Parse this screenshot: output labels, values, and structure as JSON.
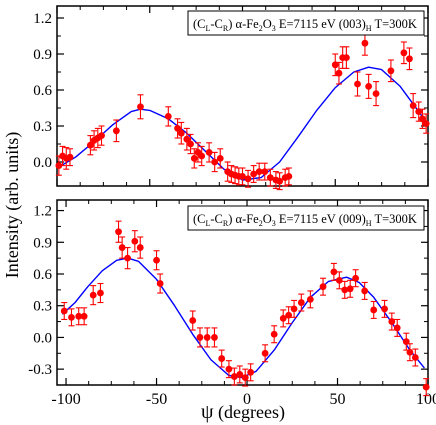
{
  "figure": {
    "xlabel_symbol": "ψ",
    "xlabel_unit": "(degrees)",
    "ylabel": "Intensity (arb. units)"
  },
  "chart_data": [
    {
      "type": "scatter",
      "legend": {
        "prefix": "(C",
        "sub_left": "L",
        "dash": "-C",
        "sub_right": "R",
        "mid": ") α-Fe",
        "sub_2": "2",
        "o": "O",
        "sub_3": "3",
        "energy": " E=7115 eV (003)",
        "sub_h": "H",
        "temp": " T=300K",
        "position": "top-right"
      },
      "xlim": [
        -100,
        100
      ],
      "ylim": [
        -0.2,
        1.3
      ],
      "xticks": [
        -100,
        -50,
        0,
        50,
        100
      ],
      "yticks": [
        "0.0",
        "0.3",
        "0.6",
        "0.9",
        "1.2"
      ],
      "fit_color": "#0000ff",
      "point_color": "#ff0000",
      "fit": {
        "x": [
          -100,
          -90,
          -80,
          -70,
          -60,
          -55,
          -50,
          -40,
          -30,
          -20,
          -10,
          0,
          10,
          20,
          30,
          40,
          50,
          60,
          68,
          75,
          85,
          95,
          100
        ],
        "y": [
          -0.05,
          0.04,
          0.17,
          0.31,
          0.42,
          0.44,
          0.43,
          0.36,
          0.24,
          0.09,
          -0.06,
          -0.15,
          -0.13,
          0.0,
          0.21,
          0.43,
          0.62,
          0.75,
          0.79,
          0.77,
          0.63,
          0.42,
          0.31
        ]
      },
      "points": [
        {
          "x": -99,
          "y": -0.03,
          "e": 0.08
        },
        {
          "x": -97,
          "y": 0.05,
          "e": 0.08
        },
        {
          "x": -95,
          "y": 0.03,
          "e": 0.09
        },
        {
          "x": -93,
          "y": 0.04,
          "e": 0.07
        },
        {
          "x": -82,
          "y": 0.14,
          "e": 0.08
        },
        {
          "x": -80,
          "y": 0.18,
          "e": 0.08
        },
        {
          "x": -78,
          "y": 0.2,
          "e": 0.08
        },
        {
          "x": -76,
          "y": 0.22,
          "e": 0.08
        },
        {
          "x": -68,
          "y": 0.26,
          "e": 0.09
        },
        {
          "x": -55,
          "y": 0.46,
          "e": 0.1
        },
        {
          "x": -40,
          "y": 0.38,
          "e": 0.08
        },
        {
          "x": -35,
          "y": 0.28,
          "e": 0.08
        },
        {
          "x": -33,
          "y": 0.24,
          "e": 0.09
        },
        {
          "x": -30,
          "y": 0.19,
          "e": 0.09
        },
        {
          "x": -28,
          "y": 0.15,
          "e": 0.08
        },
        {
          "x": -26,
          "y": 0.03,
          "e": 0.08
        },
        {
          "x": -24,
          "y": 0.08,
          "e": 0.08
        },
        {
          "x": -22,
          "y": 0.05,
          "e": 0.08
        },
        {
          "x": -18,
          "y": 0.08,
          "e": 0.08
        },
        {
          "x": -15,
          "y": 0.0,
          "e": 0.08
        },
        {
          "x": -12,
          "y": 0.03,
          "e": 0.08
        },
        {
          "x": -8,
          "y": -0.08,
          "e": 0.08
        },
        {
          "x": -6,
          "y": -0.1,
          "e": 0.07
        },
        {
          "x": -4,
          "y": -0.11,
          "e": 0.07
        },
        {
          "x": -2,
          "y": -0.12,
          "e": 0.07
        },
        {
          "x": 0,
          "y": -0.12,
          "e": 0.07
        },
        {
          "x": 3,
          "y": -0.14,
          "e": 0.07
        },
        {
          "x": 6,
          "y": -0.1,
          "e": 0.07
        },
        {
          "x": 9,
          "y": -0.08,
          "e": 0.07
        },
        {
          "x": 12,
          "y": -0.08,
          "e": 0.07
        },
        {
          "x": 15,
          "y": -0.13,
          "e": 0.07
        },
        {
          "x": 18,
          "y": -0.15,
          "e": 0.07
        },
        {
          "x": 20,
          "y": -0.16,
          "e": 0.07
        },
        {
          "x": 23,
          "y": -0.13,
          "e": 0.07
        },
        {
          "x": 25,
          "y": -0.12,
          "e": 0.07
        },
        {
          "x": 50,
          "y": 0.81,
          "e": 0.09
        },
        {
          "x": 52,
          "y": 0.74,
          "e": 0.09
        },
        {
          "x": 54,
          "y": 0.87,
          "e": 0.09
        },
        {
          "x": 56,
          "y": 0.87,
          "e": 0.09
        },
        {
          "x": 62,
          "y": 0.65,
          "e": 0.1
        },
        {
          "x": 66,
          "y": 0.99,
          "e": 0.1
        },
        {
          "x": 68,
          "y": 0.63,
          "e": 0.1
        },
        {
          "x": 72,
          "y": 0.57,
          "e": 0.1
        },
        {
          "x": 80,
          "y": 0.76,
          "e": 0.09
        },
        {
          "x": 87,
          "y": 0.91,
          "e": 0.09
        },
        {
          "x": 90,
          "y": 0.86,
          "e": 0.09
        },
        {
          "x": 92,
          "y": 0.47,
          "e": 0.1
        },
        {
          "x": 95,
          "y": 0.42,
          "e": 0.08
        },
        {
          "x": 97,
          "y": 0.36,
          "e": 0.08
        },
        {
          "x": 99,
          "y": 0.32,
          "e": 0.08
        }
      ]
    },
    {
      "type": "scatter",
      "legend": {
        "prefix": "(C",
        "sub_left": "L",
        "dash": "-C",
        "sub_right": "R",
        "mid": ") α-Fe",
        "sub_2": "2",
        "o": "O",
        "sub_3": "3",
        "energy": " E=7115 eV (009)",
        "sub_h": "H",
        "temp": " T=300K",
        "position": "top-right"
      },
      "xlim": [
        -105,
        100
      ],
      "ylim": [
        -0.45,
        1.3
      ],
      "xticks": [
        -100,
        -50,
        0,
        50,
        100
      ],
      "xticklabels": [
        "-100",
        "-50",
        "0",
        "50",
        "100"
      ],
      "yticks": [
        "-0.3",
        "0.0",
        "0.3",
        "0.6",
        "0.9",
        "1.2"
      ],
      "fit_color": "#0000ff",
      "point_color": "#ff0000",
      "fit": {
        "x": [
          -102,
          -95,
          -88,
          -80,
          -72,
          -66,
          -60,
          -50,
          -40,
          -30,
          -20,
          -10,
          -3,
          5,
          15,
          25,
          35,
          45,
          55,
          62,
          70,
          80,
          90,
          98
        ],
        "y": [
          0.22,
          0.33,
          0.48,
          0.63,
          0.73,
          0.75,
          0.72,
          0.55,
          0.3,
          0.03,
          -0.21,
          -0.36,
          -0.38,
          -0.32,
          -0.12,
          0.14,
          0.38,
          0.53,
          0.57,
          0.52,
          0.38,
          0.14,
          -0.12,
          -0.29
        ]
      },
      "points": [
        {
          "x": -101,
          "y": 0.25,
          "e": 0.08
        },
        {
          "x": -97,
          "y": 0.19,
          "e": 0.08
        },
        {
          "x": -93,
          "y": 0.2,
          "e": 0.08
        },
        {
          "x": -90,
          "y": 0.2,
          "e": 0.08
        },
        {
          "x": -85,
          "y": 0.4,
          "e": 0.09
        },
        {
          "x": -81,
          "y": 0.42,
          "e": 0.09
        },
        {
          "x": -71,
          "y": 1.0,
          "e": 0.1
        },
        {
          "x": -69,
          "y": 0.85,
          "e": 0.1
        },
        {
          "x": -66,
          "y": 0.75,
          "e": 0.1
        },
        {
          "x": -62,
          "y": 0.91,
          "e": 0.1
        },
        {
          "x": -59,
          "y": 0.85,
          "e": 0.1
        },
        {
          "x": -50,
          "y": 0.73,
          "e": 0.09
        },
        {
          "x": -48,
          "y": 0.51,
          "e": 0.09
        },
        {
          "x": -30,
          "y": 0.16,
          "e": 0.09
        },
        {
          "x": -26,
          "y": 0.0,
          "e": 0.09
        },
        {
          "x": -22,
          "y": 0.0,
          "e": 0.09
        },
        {
          "x": -18,
          "y": 0.0,
          "e": 0.09
        },
        {
          "x": -14,
          "y": -0.2,
          "e": 0.08
        },
        {
          "x": -10,
          "y": -0.3,
          "e": 0.08
        },
        {
          "x": -7,
          "y": -0.37,
          "e": 0.08
        },
        {
          "x": -4,
          "y": -0.35,
          "e": 0.08
        },
        {
          "x": -1,
          "y": -0.38,
          "e": 0.08
        },
        {
          "x": 2,
          "y": -0.33,
          "e": 0.08
        },
        {
          "x": 10,
          "y": -0.15,
          "e": 0.08
        },
        {
          "x": 15,
          "y": 0.03,
          "e": 0.08
        },
        {
          "x": 20,
          "y": 0.18,
          "e": 0.08
        },
        {
          "x": 23,
          "y": 0.21,
          "e": 0.08
        },
        {
          "x": 26,
          "y": 0.27,
          "e": 0.08
        },
        {
          "x": 30,
          "y": 0.33,
          "e": 0.08
        },
        {
          "x": 35,
          "y": 0.36,
          "e": 0.08
        },
        {
          "x": 42,
          "y": 0.48,
          "e": 0.08
        },
        {
          "x": 48,
          "y": 0.62,
          "e": 0.08
        },
        {
          "x": 51,
          "y": 0.54,
          "e": 0.08
        },
        {
          "x": 54,
          "y": 0.45,
          "e": 0.08
        },
        {
          "x": 57,
          "y": 0.46,
          "e": 0.08
        },
        {
          "x": 60,
          "y": 0.56,
          "e": 0.08
        },
        {
          "x": 65,
          "y": 0.44,
          "e": 0.08
        },
        {
          "x": 70,
          "y": 0.26,
          "e": 0.08
        },
        {
          "x": 76,
          "y": 0.27,
          "e": 0.08
        },
        {
          "x": 80,
          "y": 0.15,
          "e": 0.08
        },
        {
          "x": 83,
          "y": 0.09,
          "e": 0.08
        },
        {
          "x": 88,
          "y": -0.04,
          "e": 0.08
        },
        {
          "x": 90,
          "y": -0.14,
          "e": 0.08
        },
        {
          "x": 93,
          "y": -0.19,
          "e": 0.08
        },
        {
          "x": 99,
          "y": -0.47,
          "e": 0.08
        }
      ]
    }
  ]
}
